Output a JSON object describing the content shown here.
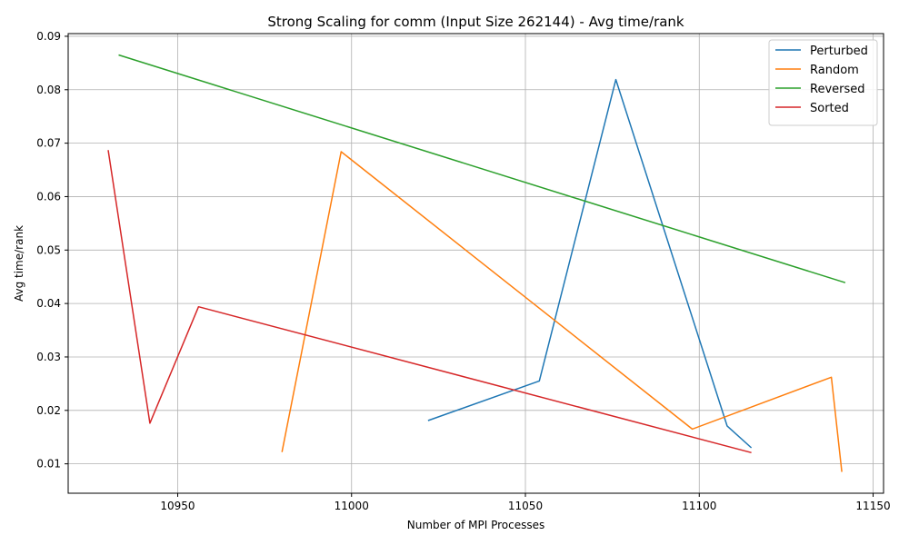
{
  "chart_data": {
    "type": "line",
    "title": "Strong Scaling for comm (Input Size 262144) - Avg time/rank",
    "xlabel": "Number of MPI Processes",
    "ylabel": "Avg time/rank",
    "xlim": [
      10918.5,
      11153
    ],
    "ylim": [
      0.0045,
      0.0905
    ],
    "xticks": [
      10950,
      11000,
      11050,
      11100,
      11150
    ],
    "xtick_labels": [
      "10950",
      "11000",
      "11050",
      "11100",
      "11150"
    ],
    "yticks": [
      0.01,
      0.02,
      0.03,
      0.04,
      0.05,
      0.06,
      0.07,
      0.08,
      0.09
    ],
    "ytick_labels": [
      "0.01",
      "0.02",
      "0.03",
      "0.04",
      "0.05",
      "0.06",
      "0.07",
      "0.08",
      "0.09"
    ],
    "grid": true,
    "legend_position": "top-right",
    "series": [
      {
        "name": "Perturbed",
        "color": "#1f77b4",
        "x": [
          11022,
          11054,
          11076,
          11108,
          11115
        ],
        "y": [
          0.0181,
          0.0255,
          0.0819,
          0.0171,
          0.013
        ]
      },
      {
        "name": "Random",
        "color": "#ff7f0e",
        "x": [
          10980,
          10997,
          11098,
          11138,
          11141
        ],
        "y": [
          0.0122,
          0.0684,
          0.0165,
          0.0262,
          0.0085
        ]
      },
      {
        "name": "Reversed",
        "color": "#2ca02c",
        "x": [
          10933,
          11142
        ],
        "y": [
          0.0865,
          0.0439
        ]
      },
      {
        "name": "Sorted",
        "color": "#d62728",
        "x": [
          10930,
          10942,
          10956,
          11115
        ],
        "y": [
          0.0687,
          0.0176,
          0.0394,
          0.0121
        ]
      }
    ]
  }
}
